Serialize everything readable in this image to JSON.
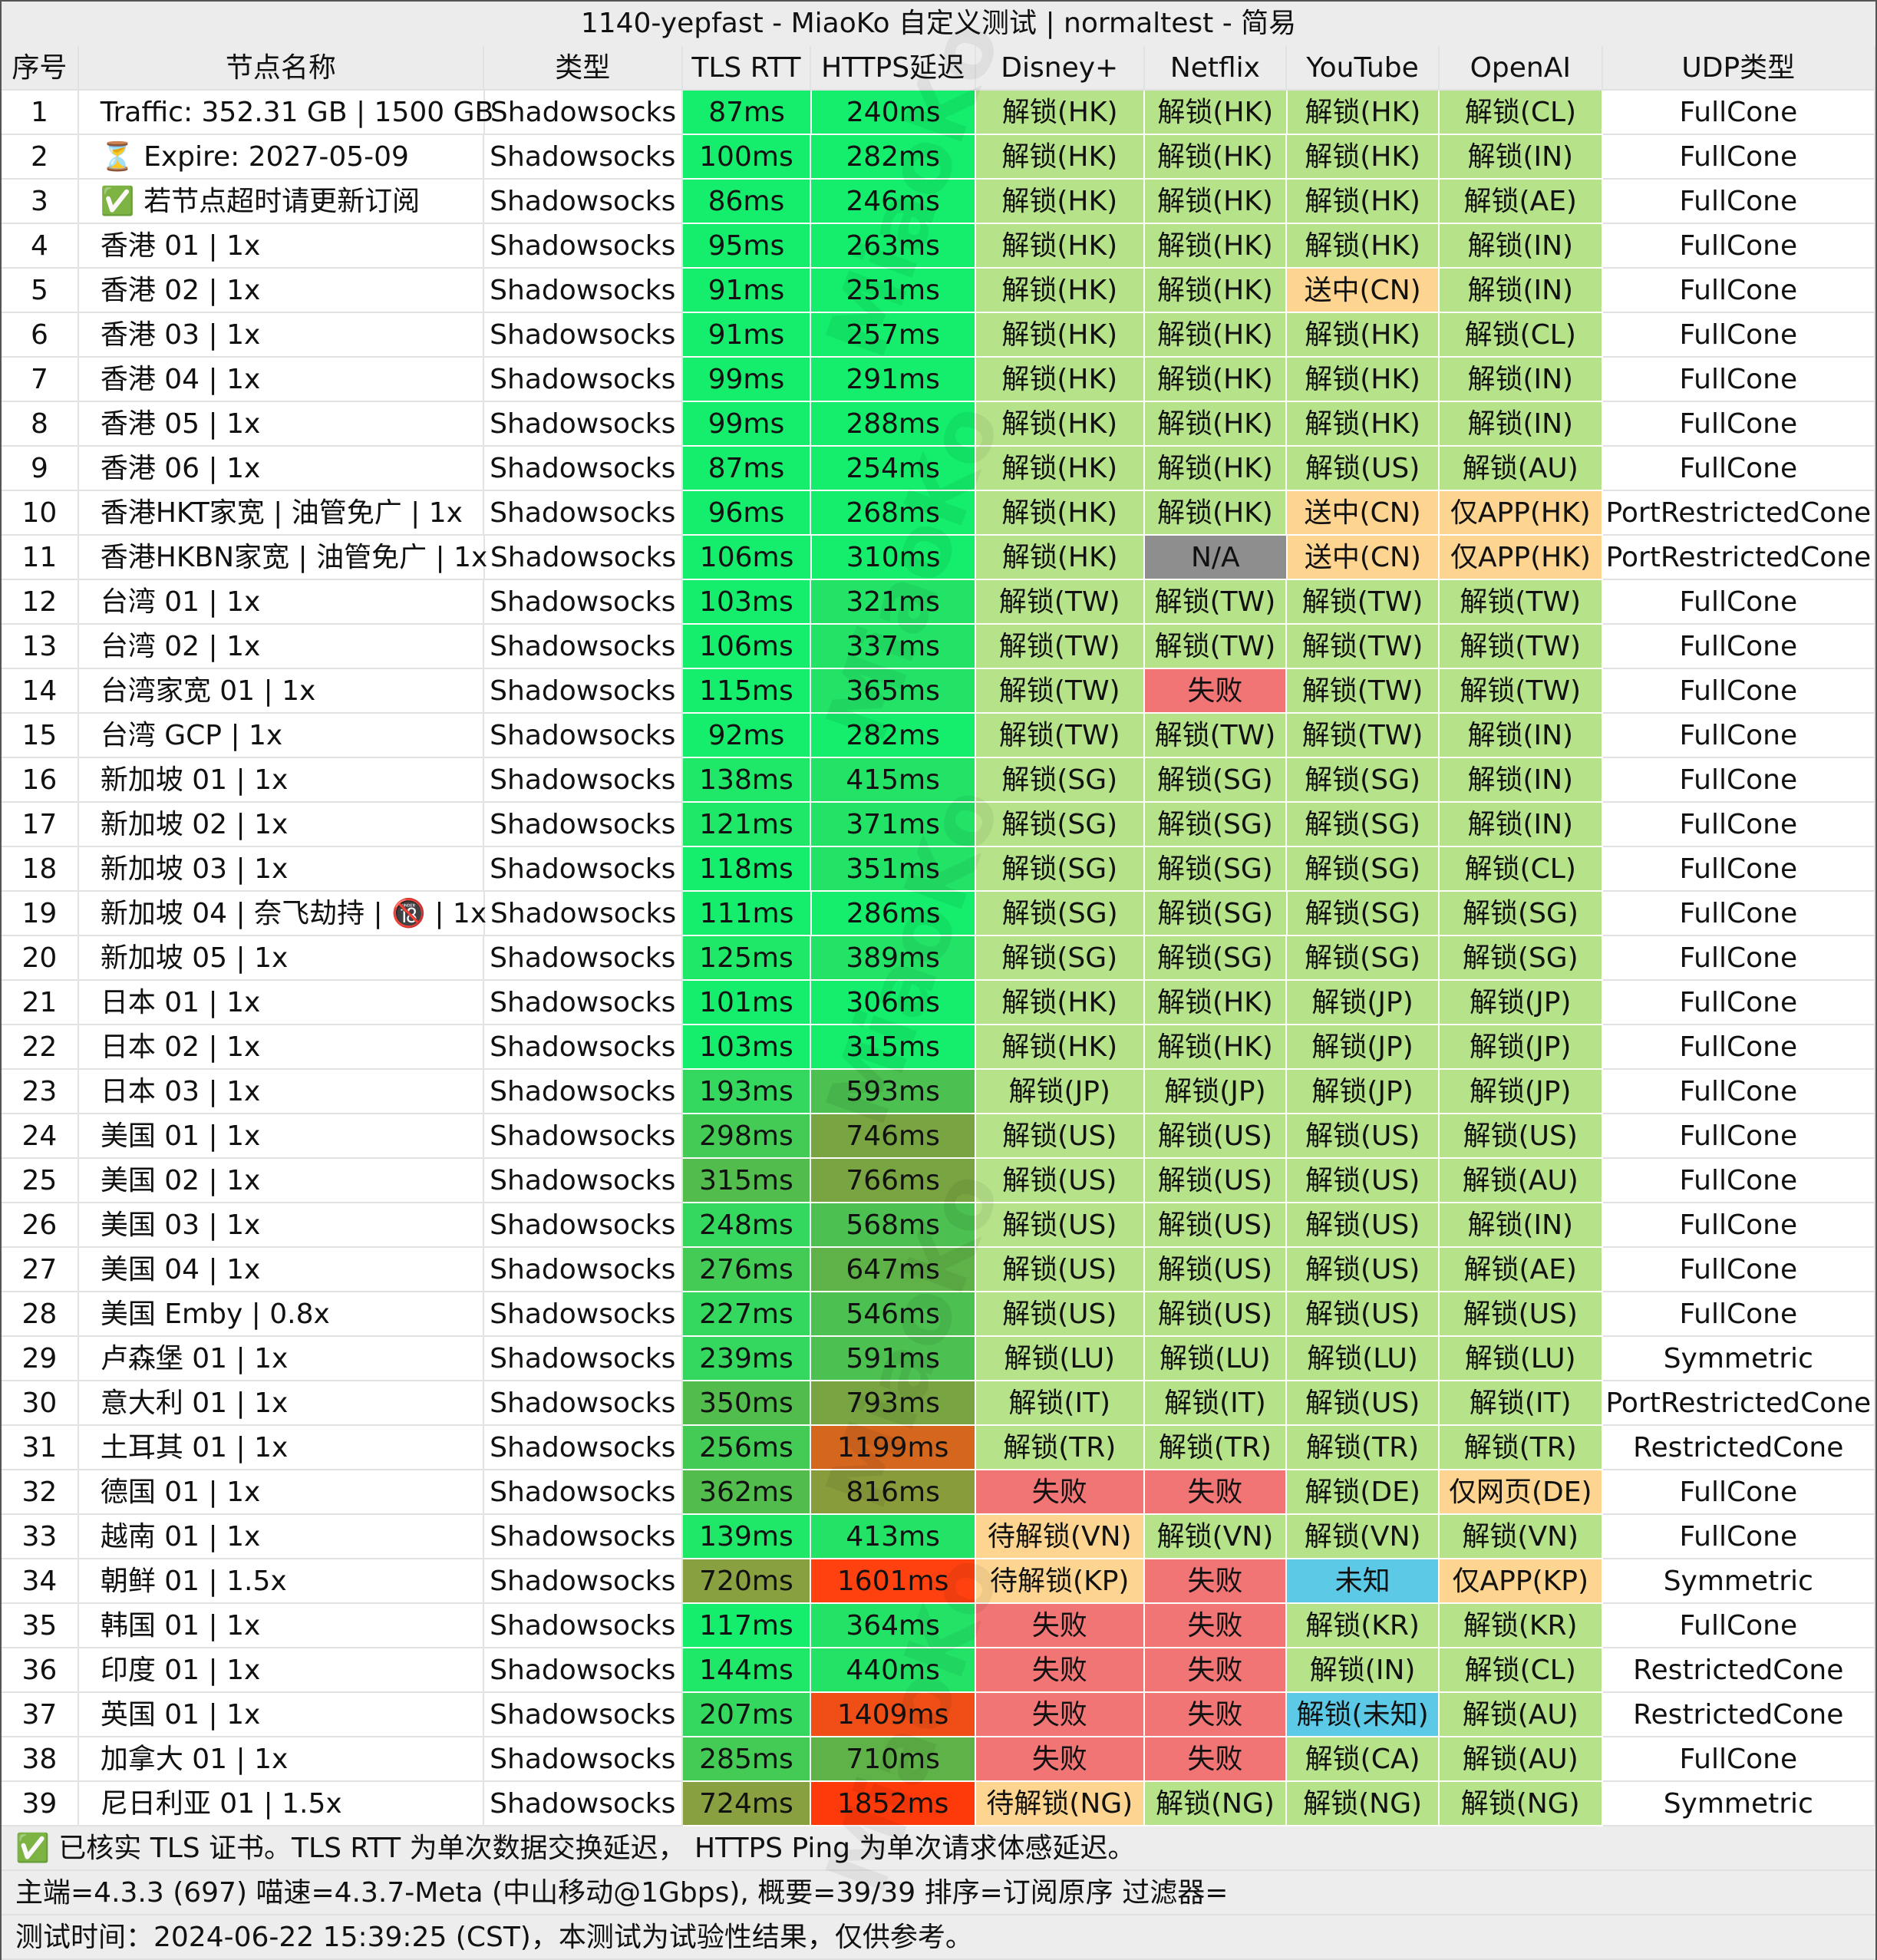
{
  "title": "1140-yepfast - MiaoKo 自定义测试 | normaltest - 简易",
  "watermark": "MiaoKo",
  "headers": [
    "序号",
    "节点名称",
    "类型",
    "TLS RTT",
    "HTTPS延迟",
    "Disney+",
    "Netflix",
    "YouTube",
    "OpenAI",
    "UDP类型"
  ],
  "rows": [
    {
      "cells": [
        "1",
        "Traffic: 352.31 GB | 1500 GB",
        "Shadowsocks",
        "87ms",
        "240ms",
        "解锁(HK)",
        "解锁(HK)",
        "解锁(HK)",
        "解锁(CL)",
        "FullCone"
      ],
      "colors": [
        null,
        null,
        null,
        "#14ee6c",
        "#14ee6c",
        "#b6e38a",
        "#b6e38a",
        "#b6e38a",
        "#b6e38a",
        null
      ]
    },
    {
      "cells": [
        "2",
        "⏳ Expire: 2027-05-09",
        "Shadowsocks",
        "100ms",
        "282ms",
        "解锁(HK)",
        "解锁(HK)",
        "解锁(HK)",
        "解锁(IN)",
        "FullCone"
      ],
      "colors": [
        null,
        null,
        null,
        "#14ee6c",
        "#14ee6c",
        "#b6e38a",
        "#b6e38a",
        "#b6e38a",
        "#b6e38a",
        null
      ]
    },
    {
      "cells": [
        "3",
        "✅ 若节点超时请更新订阅",
        "Shadowsocks",
        "86ms",
        "246ms",
        "解锁(HK)",
        "解锁(HK)",
        "解锁(HK)",
        "解锁(AE)",
        "FullCone"
      ],
      "colors": [
        null,
        null,
        null,
        "#14ee6c",
        "#14ee6c",
        "#b6e38a",
        "#b6e38a",
        "#b6e38a",
        "#b6e38a",
        null
      ]
    },
    {
      "cells": [
        "4",
        "香港 01 | 1x",
        "Shadowsocks",
        "95ms",
        "263ms",
        "解锁(HK)",
        "解锁(HK)",
        "解锁(HK)",
        "解锁(IN)",
        "FullCone"
      ],
      "colors": [
        null,
        null,
        null,
        "#14ee6c",
        "#14ee6c",
        "#b6e38a",
        "#b6e38a",
        "#b6e38a",
        "#b6e38a",
        null
      ]
    },
    {
      "cells": [
        "5",
        "香港 02 | 1x",
        "Shadowsocks",
        "91ms",
        "251ms",
        "解锁(HK)",
        "解锁(HK)",
        "送中(CN)",
        "解锁(IN)",
        "FullCone"
      ],
      "colors": [
        null,
        null,
        null,
        "#14ee6c",
        "#14ee6c",
        "#b6e38a",
        "#b6e38a",
        "#fdd590",
        "#b6e38a",
        null
      ]
    },
    {
      "cells": [
        "6",
        "香港 03 | 1x",
        "Shadowsocks",
        "91ms",
        "257ms",
        "解锁(HK)",
        "解锁(HK)",
        "解锁(HK)",
        "解锁(CL)",
        "FullCone"
      ],
      "colors": [
        null,
        null,
        null,
        "#14ee6c",
        "#14ee6c",
        "#b6e38a",
        "#b6e38a",
        "#b6e38a",
        "#b6e38a",
        null
      ]
    },
    {
      "cells": [
        "7",
        "香港 04 | 1x",
        "Shadowsocks",
        "99ms",
        "291ms",
        "解锁(HK)",
        "解锁(HK)",
        "解锁(HK)",
        "解锁(IN)",
        "FullCone"
      ],
      "colors": [
        null,
        null,
        null,
        "#14ee6c",
        "#14ee6c",
        "#b6e38a",
        "#b6e38a",
        "#b6e38a",
        "#b6e38a",
        null
      ]
    },
    {
      "cells": [
        "8",
        "香港 05 | 1x",
        "Shadowsocks",
        "99ms",
        "288ms",
        "解锁(HK)",
        "解锁(HK)",
        "解锁(HK)",
        "解锁(IN)",
        "FullCone"
      ],
      "colors": [
        null,
        null,
        null,
        "#14ee6c",
        "#14ee6c",
        "#b6e38a",
        "#b6e38a",
        "#b6e38a",
        "#b6e38a",
        null
      ]
    },
    {
      "cells": [
        "9",
        "香港 06 | 1x",
        "Shadowsocks",
        "87ms",
        "254ms",
        "解锁(HK)",
        "解锁(HK)",
        "解锁(US)",
        "解锁(AU)",
        "FullCone"
      ],
      "colors": [
        null,
        null,
        null,
        "#14ee6c",
        "#14ee6c",
        "#b6e38a",
        "#b6e38a",
        "#b6e38a",
        "#b6e38a",
        null
      ]
    },
    {
      "cells": [
        "10",
        "香港HKT家宽 | 油管免广 | 1x",
        "Shadowsocks",
        "96ms",
        "268ms",
        "解锁(HK)",
        "解锁(HK)",
        "送中(CN)",
        "仅APP(HK)",
        "PortRestrictedCone"
      ],
      "colors": [
        null,
        null,
        null,
        "#14ee6c",
        "#14ee6c",
        "#b6e38a",
        "#b6e38a",
        "#fdd590",
        "#fdd590",
        null
      ]
    },
    {
      "cells": [
        "11",
        "香港HKBN家宽 | 油管免广 | 1x",
        "Shadowsocks",
        "106ms",
        "310ms",
        "解锁(HK)",
        "N/A",
        "送中(CN)",
        "仅APP(HK)",
        "PortRestrictedCone"
      ],
      "colors": [
        null,
        null,
        null,
        "#14ee6c",
        "#14ee6c",
        "#b6e38a",
        "#8e8e8e",
        "#fdd590",
        "#fdd590",
        null
      ]
    },
    {
      "cells": [
        "12",
        "台湾 01 | 1x",
        "Shadowsocks",
        "103ms",
        "321ms",
        "解锁(TW)",
        "解锁(TW)",
        "解锁(TW)",
        "解锁(TW)",
        "FullCone"
      ],
      "colors": [
        null,
        null,
        null,
        "#14ee6c",
        "#22e366",
        "#b6e38a",
        "#b6e38a",
        "#b6e38a",
        "#b6e38a",
        null
      ]
    },
    {
      "cells": [
        "13",
        "台湾 02 | 1x",
        "Shadowsocks",
        "106ms",
        "337ms",
        "解锁(TW)",
        "解锁(TW)",
        "解锁(TW)",
        "解锁(TW)",
        "FullCone"
      ],
      "colors": [
        null,
        null,
        null,
        "#14ee6c",
        "#22e366",
        "#b6e38a",
        "#b6e38a",
        "#b6e38a",
        "#b6e38a",
        null
      ]
    },
    {
      "cells": [
        "14",
        "台湾家宽 01 | 1x",
        "Shadowsocks",
        "115ms",
        "365ms",
        "解锁(TW)",
        "失败",
        "解锁(TW)",
        "解锁(TW)",
        "FullCone"
      ],
      "colors": [
        null,
        null,
        null,
        "#14ee6c",
        "#22e366",
        "#b6e38a",
        "#f17575",
        "#b6e38a",
        "#b6e38a",
        null
      ]
    },
    {
      "cells": [
        "15",
        "台湾 GCP | 1x",
        "Shadowsocks",
        "92ms",
        "282ms",
        "解锁(TW)",
        "解锁(TW)",
        "解锁(TW)",
        "解锁(IN)",
        "FullCone"
      ],
      "colors": [
        null,
        null,
        null,
        "#14ee6c",
        "#14ee6c",
        "#b6e38a",
        "#b6e38a",
        "#b6e38a",
        "#b6e38a",
        null
      ]
    },
    {
      "cells": [
        "16",
        "新加坡 01 | 1x",
        "Shadowsocks",
        "138ms",
        "415ms",
        "解锁(SG)",
        "解锁(SG)",
        "解锁(SG)",
        "解锁(IN)",
        "FullCone"
      ],
      "colors": [
        null,
        null,
        null,
        "#1fe868",
        "#22e366",
        "#b6e38a",
        "#b6e38a",
        "#b6e38a",
        "#b6e38a",
        null
      ]
    },
    {
      "cells": [
        "17",
        "新加坡 02 | 1x",
        "Shadowsocks",
        "121ms",
        "371ms",
        "解锁(SG)",
        "解锁(SG)",
        "解锁(SG)",
        "解锁(IN)",
        "FullCone"
      ],
      "colors": [
        null,
        null,
        null,
        "#1fe868",
        "#22e366",
        "#b6e38a",
        "#b6e38a",
        "#b6e38a",
        "#b6e38a",
        null
      ]
    },
    {
      "cells": [
        "18",
        "新加坡 03 | 1x",
        "Shadowsocks",
        "118ms",
        "351ms",
        "解锁(SG)",
        "解锁(SG)",
        "解锁(SG)",
        "解锁(CL)",
        "FullCone"
      ],
      "colors": [
        null,
        null,
        null,
        "#14ee6c",
        "#22e366",
        "#b6e38a",
        "#b6e38a",
        "#b6e38a",
        "#b6e38a",
        null
      ]
    },
    {
      "cells": [
        "19",
        "新加坡 04 | 奈飞劫持 | 🔞 | 1x",
        "Shadowsocks",
        "111ms",
        "286ms",
        "解锁(SG)",
        "解锁(SG)",
        "解锁(SG)",
        "解锁(SG)",
        "FullCone"
      ],
      "colors": [
        null,
        null,
        null,
        "#14ee6c",
        "#14ee6c",
        "#b6e38a",
        "#b6e38a",
        "#b6e38a",
        "#b6e38a",
        null
      ]
    },
    {
      "cells": [
        "20",
        "新加坡 05 | 1x",
        "Shadowsocks",
        "125ms",
        "389ms",
        "解锁(SG)",
        "解锁(SG)",
        "解锁(SG)",
        "解锁(SG)",
        "FullCone"
      ],
      "colors": [
        null,
        null,
        null,
        "#1fe868",
        "#22e366",
        "#b6e38a",
        "#b6e38a",
        "#b6e38a",
        "#b6e38a",
        null
      ]
    },
    {
      "cells": [
        "21",
        "日本 01 | 1x",
        "Shadowsocks",
        "101ms",
        "306ms",
        "解锁(HK)",
        "解锁(HK)",
        "解锁(JP)",
        "解锁(JP)",
        "FullCone"
      ],
      "colors": [
        null,
        null,
        null,
        "#14ee6c",
        "#14ee6c",
        "#b6e38a",
        "#b6e38a",
        "#b6e38a",
        "#b6e38a",
        null
      ]
    },
    {
      "cells": [
        "22",
        "日本 02 | 1x",
        "Shadowsocks",
        "103ms",
        "315ms",
        "解锁(HK)",
        "解锁(HK)",
        "解锁(JP)",
        "解锁(JP)",
        "FullCone"
      ],
      "colors": [
        null,
        null,
        null,
        "#14ee6c",
        "#14ee6c",
        "#b6e38a",
        "#b6e38a",
        "#b6e38a",
        "#b6e38a",
        null
      ]
    },
    {
      "cells": [
        "23",
        "日本 03 | 1x",
        "Shadowsocks",
        "193ms",
        "593ms",
        "解锁(JP)",
        "解锁(JP)",
        "解锁(JP)",
        "解锁(JP)",
        "FullCone"
      ],
      "colors": [
        null,
        null,
        null,
        "#34d85e",
        "#4cc050",
        "#b6e38a",
        "#b6e38a",
        "#b6e38a",
        "#b6e38a",
        null
      ]
    },
    {
      "cells": [
        "24",
        "美国 01 | 1x",
        "Shadowsocks",
        "298ms",
        "746ms",
        "解锁(US)",
        "解锁(US)",
        "解锁(US)",
        "解锁(US)",
        "FullCone"
      ],
      "colors": [
        null,
        null,
        null,
        "#44cb55",
        "#78a541",
        "#b6e38a",
        "#b6e38a",
        "#b6e38a",
        "#b6e38a",
        null
      ]
    },
    {
      "cells": [
        "25",
        "美国 02 | 1x",
        "Shadowsocks",
        "315ms",
        "766ms",
        "解锁(US)",
        "解锁(US)",
        "解锁(US)",
        "解锁(AU)",
        "FullCone"
      ],
      "colors": [
        null,
        null,
        null,
        "#52bd4c",
        "#78a541",
        "#b6e38a",
        "#b6e38a",
        "#b6e38a",
        "#b6e38a",
        null
      ]
    },
    {
      "cells": [
        "26",
        "美国 03 | 1x",
        "Shadowsocks",
        "248ms",
        "568ms",
        "解锁(US)",
        "解锁(US)",
        "解锁(US)",
        "解锁(IN)",
        "FullCone"
      ],
      "colors": [
        null,
        null,
        null,
        "#34d85e",
        "#4cc050",
        "#b6e38a",
        "#b6e38a",
        "#b6e38a",
        "#b6e38a",
        null
      ]
    },
    {
      "cells": [
        "27",
        "美国 04 | 1x",
        "Shadowsocks",
        "276ms",
        "647ms",
        "解锁(US)",
        "解锁(US)",
        "解锁(US)",
        "解锁(AE)",
        "FullCone"
      ],
      "colors": [
        null,
        null,
        null,
        "#44cb55",
        "#5fb247",
        "#b6e38a",
        "#b6e38a",
        "#b6e38a",
        "#b6e38a",
        null
      ]
    },
    {
      "cells": [
        "28",
        "美国 Emby | 0.8x",
        "Shadowsocks",
        "227ms",
        "546ms",
        "解锁(US)",
        "解锁(US)",
        "解锁(US)",
        "解锁(US)",
        "FullCone"
      ],
      "colors": [
        null,
        null,
        null,
        "#34d85e",
        "#4cc050",
        "#b6e38a",
        "#b6e38a",
        "#b6e38a",
        "#b6e38a",
        null
      ]
    },
    {
      "cells": [
        "29",
        "卢森堡 01 | 1x",
        "Shadowsocks",
        "239ms",
        "591ms",
        "解锁(LU)",
        "解锁(LU)",
        "解锁(LU)",
        "解锁(LU)",
        "Symmetric"
      ],
      "colors": [
        null,
        null,
        null,
        "#34d85e",
        "#4cc050",
        "#b6e38a",
        "#b6e38a",
        "#b6e38a",
        "#b6e38a",
        null
      ]
    },
    {
      "cells": [
        "30",
        "意大利 01 | 1x",
        "Shadowsocks",
        "350ms",
        "793ms",
        "解锁(IT)",
        "解锁(IT)",
        "解锁(US)",
        "解锁(IT)",
        "PortRestrictedCone"
      ],
      "colors": [
        null,
        null,
        null,
        "#52bd4c",
        "#78a541",
        "#b6e38a",
        "#b6e38a",
        "#b6e38a",
        "#b6e38a",
        null
      ]
    },
    {
      "cells": [
        "31",
        "土耳其 01 | 1x",
        "Shadowsocks",
        "256ms",
        "1199ms",
        "解锁(TR)",
        "解锁(TR)",
        "解锁(TR)",
        "解锁(TR)",
        "RestrictedCone"
      ],
      "colors": [
        null,
        null,
        null,
        "#44cb55",
        "#d4661e",
        "#b6e38a",
        "#b6e38a",
        "#b6e38a",
        "#b6e38a",
        null
      ]
    },
    {
      "cells": [
        "32",
        "德国 01 | 1x",
        "Shadowsocks",
        "362ms",
        "816ms",
        "失败",
        "失败",
        "解锁(DE)",
        "仅网页(DE)",
        "FullCone"
      ],
      "colors": [
        null,
        null,
        null,
        "#52bd4c",
        "#889c3c",
        "#f17575",
        "#f17575",
        "#b6e38a",
        "#fdd590",
        null
      ]
    },
    {
      "cells": [
        "33",
        "越南 01 | 1x",
        "Shadowsocks",
        "139ms",
        "413ms",
        "待解锁(VN)",
        "解锁(VN)",
        "解锁(VN)",
        "解锁(VN)",
        "FullCone"
      ],
      "colors": [
        null,
        null,
        null,
        "#1fe868",
        "#22e366",
        "#fdd590",
        "#b6e38a",
        "#b6e38a",
        "#b6e38a",
        null
      ]
    },
    {
      "cells": [
        "34",
        "朝鲜 01 | 1.5x",
        "Shadowsocks",
        "720ms",
        "1601ms",
        "待解锁(KP)",
        "失败",
        "未知",
        "仅APP(KP)",
        "Symmetric"
      ],
      "colors": [
        null,
        null,
        null,
        "#88a040",
        "#ff4110",
        "#fdd590",
        "#f17575",
        "#5cc9e6",
        "#fdd590",
        null
      ]
    },
    {
      "cells": [
        "35",
        "韩国 01 | 1x",
        "Shadowsocks",
        "117ms",
        "364ms",
        "失败",
        "失败",
        "解锁(KR)",
        "解锁(KR)",
        "FullCone"
      ],
      "colors": [
        null,
        null,
        null,
        "#14ee6c",
        "#22e366",
        "#f17575",
        "#f17575",
        "#b6e38a",
        "#b6e38a",
        null
      ]
    },
    {
      "cells": [
        "36",
        "印度 01 | 1x",
        "Shadowsocks",
        "144ms",
        "440ms",
        "失败",
        "失败",
        "解锁(IN)",
        "解锁(CL)",
        "RestrictedCone"
      ],
      "colors": [
        null,
        null,
        null,
        "#1fe868",
        "#22e366",
        "#f17575",
        "#f17575",
        "#b6e38a",
        "#b6e38a",
        null
      ]
    },
    {
      "cells": [
        "37",
        "英国 01 | 1x",
        "Shadowsocks",
        "207ms",
        "1409ms",
        "失败",
        "失败",
        "解锁(未知)",
        "解锁(AU)",
        "RestrictedCone"
      ],
      "colors": [
        null,
        null,
        null,
        "#34d85e",
        "#ef4f17",
        "#f17575",
        "#f17575",
        "#5cc9e6",
        "#b6e38a",
        null
      ]
    },
    {
      "cells": [
        "38",
        "加拿大 01 | 1x",
        "Shadowsocks",
        "285ms",
        "710ms",
        "失败",
        "失败",
        "解锁(CA)",
        "解锁(AU)",
        "FullCone"
      ],
      "colors": [
        null,
        null,
        null,
        "#44cb55",
        "#5fb247",
        "#f17575",
        "#f17575",
        "#b6e38a",
        "#b6e38a",
        null
      ]
    },
    {
      "cells": [
        "39",
        "尼日利亚 01 | 1.5x",
        "Shadowsocks",
        "724ms",
        "1852ms",
        "待解锁(NG)",
        "解锁(NG)",
        "解锁(NG)",
        "解锁(NG)",
        "Symmetric"
      ],
      "colors": [
        null,
        null,
        null,
        "#88a040",
        "#ff3a0a",
        "#fdd590",
        "#b6e38a",
        "#b6e38a",
        "#b6e38a",
        null
      ]
    }
  ],
  "footer": [
    "✅ 已核实 TLS 证书。TLS RTT 为单次数据交换延迟， HTTPS Ping 为单次请求体感延迟。",
    "主端=4.3.3 (697) 喵速=4.3.7-Meta (中山移动@1Gbps), 概要=39/39 排序=订阅原序 过滤器=",
    "测试时间：2024-06-22 15:39:25 (CST)，本测试为试验性结果，仅供参考。"
  ]
}
